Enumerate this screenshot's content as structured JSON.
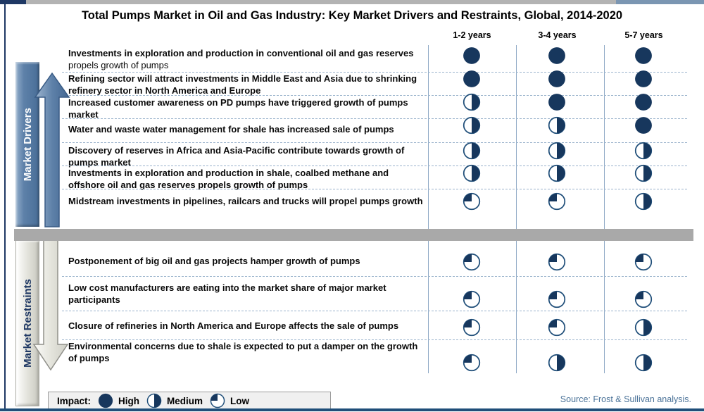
{
  "page": {
    "title": "Total Pumps Market in Oil and Gas Industry: Key Market Drivers and Restraints, Global, 2014-2020",
    "source": "Source: Frost & Sullivan analysis."
  },
  "columns": [
    "1-2 years",
    "3-4 years",
    "5-7 years"
  ],
  "drivers": {
    "label": "Market Drivers",
    "rows": [
      {
        "bold": "Investments in exploration and production in conventional oil and gas reserves",
        "normal": " propels growth of pumps",
        "impacts": [
          "high",
          "high",
          "high"
        ]
      },
      {
        "bold": "Refining sector will attract investments in Middle East and Asia due to shrinking refinery sector in North America and Europe",
        "normal": "",
        "impacts": [
          "high",
          "high",
          "high"
        ]
      },
      {
        "bold": "Increased customer awareness on PD pumps have triggered growth of pumps market",
        "normal": "",
        "impacts": [
          "medium",
          "high",
          "high"
        ]
      },
      {
        "bold": "Water and waste water management for shale has increased sale of pumps",
        "normal": "",
        "impacts": [
          "medium",
          "medium",
          "high"
        ]
      },
      {
        "bold": "Discovery of reserves in Africa and Asia-Pacific contribute towards growth of pumps market",
        "normal": "",
        "impacts": [
          "medium",
          "medium",
          "medium"
        ]
      },
      {
        "bold": "Investments in exploration and production in shale, coalbed methane and offshore oil and gas reserves propels growth of pumps",
        "normal": "",
        "impacts": [
          "medium",
          "medium",
          "medium"
        ]
      },
      {
        "bold": "Midstream investments in pipelines, railcars and trucks will propel pumps growth",
        "normal": "",
        "impacts": [
          "low",
          "low",
          "medium"
        ]
      }
    ]
  },
  "restraints": {
    "label": "Market Restraints",
    "rows": [
      {
        "bold": "Postponement of big oil and gas projects hamper growth of pumps",
        "normal": "",
        "impacts": [
          "low",
          "low",
          "low"
        ]
      },
      {
        "bold": "Low cost manufacturers are eating into the market share of major market participants",
        "normal": "",
        "impacts": [
          "low",
          "low",
          "low"
        ]
      },
      {
        "bold": "Closure of refineries in North America and Europe affects the sale of pumps",
        "normal": "",
        "impacts": [
          "low",
          "low",
          "medium"
        ]
      },
      {
        "bold": "Environmental concerns due to shale is expected to put a damper on the growth of pumps",
        "normal": "",
        "impacts": [
          "low",
          "medium",
          "medium"
        ]
      }
    ]
  },
  "legend": {
    "label": "Impact:",
    "items": [
      {
        "level": "high",
        "label": "High"
      },
      {
        "level": "medium",
        "label": "Medium"
      },
      {
        "level": "low",
        "label": "Low"
      }
    ]
  },
  "colors": {
    "ball_navy": "#17375d",
    "ball_stroke": "#1f4e79",
    "line_blue": "#8fa9c6",
    "dashed_blue": "#9ab3cc",
    "divider_gray": "#a9a9a9",
    "driver_bar_blue": "#5e81a9",
    "restraint_text_navy": "#1f3864",
    "source_blue": "#4a7298"
  },
  "chart_data": {
    "type": "table",
    "title": "Total Pumps Market in Oil and Gas Industry: Key Market Drivers and Restraints, Global, 2014-2020",
    "columns": [
      "1-2 years",
      "3-4 years",
      "5-7 years"
    ],
    "impact_scale": [
      "High",
      "Medium",
      "Low"
    ],
    "legend_position": "bottom",
    "series": [
      {
        "group": "Market Drivers",
        "name": "Investments in exploration and production in conventional oil and gas reserves propels growth of pumps",
        "values": [
          "High",
          "High",
          "High"
        ]
      },
      {
        "group": "Market Drivers",
        "name": "Refining sector will attract investments in Middle East and Asia due to shrinking refinery sector in North America and Europe",
        "values": [
          "High",
          "High",
          "High"
        ]
      },
      {
        "group": "Market Drivers",
        "name": "Increased customer awareness on PD pumps have triggered growth of pumps market",
        "values": [
          "Medium",
          "High",
          "High"
        ]
      },
      {
        "group": "Market Drivers",
        "name": "Water and waste water management for shale has increased sale of pumps",
        "values": [
          "Medium",
          "Medium",
          "High"
        ]
      },
      {
        "group": "Market Drivers",
        "name": "Discovery of reserves in Africa and Asia-Pacific contribute towards growth of pumps market",
        "values": [
          "Medium",
          "Medium",
          "Medium"
        ]
      },
      {
        "group": "Market Drivers",
        "name": "Investments in exploration and production in shale, coalbed methane and offshore oil and gas reserves propels growth of pumps",
        "values": [
          "Medium",
          "Medium",
          "Medium"
        ]
      },
      {
        "group": "Market Drivers",
        "name": "Midstream investments in pipelines, railcars and trucks will propel pumps growth",
        "values": [
          "Low",
          "Low",
          "Medium"
        ]
      },
      {
        "group": "Market Restraints",
        "name": "Postponement of big oil and gas projects hamper growth of pumps",
        "values": [
          "Low",
          "Low",
          "Low"
        ]
      },
      {
        "group": "Market Restraints",
        "name": "Low cost manufacturers are eating into the market share of major market participants",
        "values": [
          "Low",
          "Low",
          "Low"
        ]
      },
      {
        "group": "Market Restraints",
        "name": "Closure of refineries in North America and Europe affects the sale of pumps",
        "values": [
          "Low",
          "Low",
          "Medium"
        ]
      },
      {
        "group": "Market Restraints",
        "name": "Environmental concerns due to shale is expected to put a damper on the growth of pumps",
        "values": [
          "Low",
          "Medium",
          "Medium"
        ]
      }
    ]
  }
}
